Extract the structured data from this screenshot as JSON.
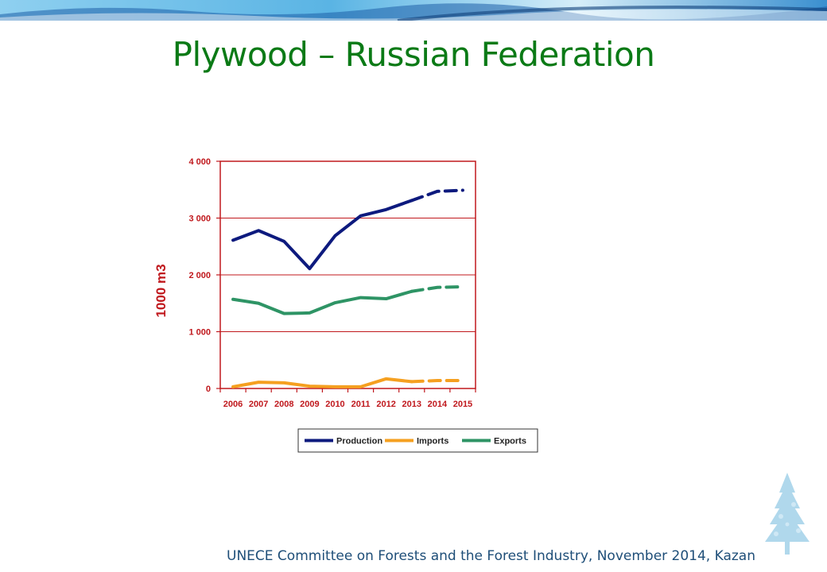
{
  "slide": {
    "title": "Plywood – Russian Federation",
    "footer": "UNECE Committee on Forests and the Forest Industry, November 2014, Kazan"
  },
  "colors": {
    "title": "#0b7a16",
    "axis": "#c0181d",
    "production": "#0d1a7e",
    "imports": "#f5a020",
    "exports": "#2e9465"
  },
  "chart_data": {
    "type": "line",
    "title": "",
    "xlabel": "",
    "ylabel": "1000 m3",
    "ylim": [
      0,
      4000
    ],
    "yticks": [
      0,
      1000,
      2000,
      3000,
      4000
    ],
    "ytick_labels": [
      "0",
      "1 000",
      "2 000",
      "3 000",
      "4 000"
    ],
    "x": [
      "2006",
      "2007",
      "2008",
      "2009",
      "2010",
      "2011",
      "2012",
      "2013",
      "2014",
      "2015"
    ],
    "forecast_from": "2013",
    "grid": true,
    "legend": "bottom",
    "series": [
      {
        "name": "Production",
        "values": [
          2610,
          2780,
          2590,
          2110,
          2690,
          3040,
          3150,
          3310,
          3470,
          3490
        ]
      },
      {
        "name": "Imports",
        "values": [
          30,
          110,
          100,
          40,
          30,
          30,
          170,
          120,
          140,
          140
        ]
      },
      {
        "name": "Exports",
        "values": [
          1570,
          1500,
          1320,
          1330,
          1510,
          1600,
          1580,
          1710,
          1780,
          1790
        ]
      }
    ]
  }
}
